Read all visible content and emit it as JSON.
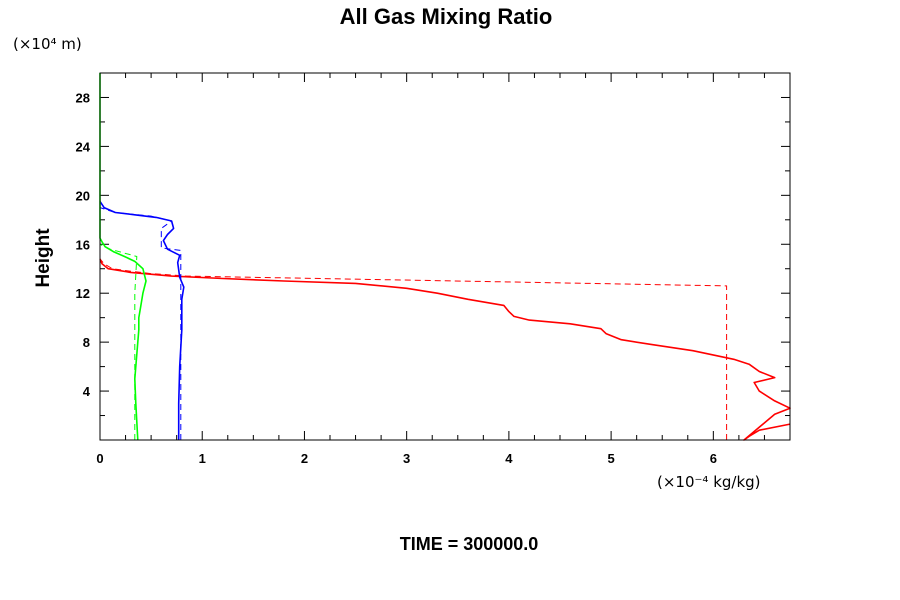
{
  "chart_data": {
    "type": "line",
    "title": "All Gas Mixing Ratio",
    "ylabel": "Height",
    "y_unit": "(×10⁴ m)",
    "x_unit": "(×10⁻⁴ kg/kg)",
    "footer": "TIME = 300000.0",
    "xlim": [
      0,
      6.75
    ],
    "ylim": [
      0,
      30
    ],
    "x_ticks": [
      0,
      1,
      2,
      3,
      4,
      5,
      6
    ],
    "y_ticks": [
      4,
      8,
      12,
      16,
      20,
      24,
      28
    ],
    "grid": false,
    "legend": "none",
    "series": [
      {
        "color": "#ff0000",
        "style": "solid",
        "points": [
          [
            6.75,
            1.3
          ],
          [
            6.45,
            0.8
          ],
          [
            6.35,
            0.3
          ],
          [
            6.3,
            0
          ],
          [
            6.6,
            2.1
          ],
          [
            6.75,
            2.6
          ],
          [
            6.6,
            3.2
          ],
          [
            6.45,
            4.0
          ],
          [
            6.4,
            4.7
          ],
          [
            6.6,
            5.1
          ],
          [
            6.45,
            5.6
          ],
          [
            6.35,
            6.2
          ],
          [
            6.2,
            6.6
          ],
          [
            5.8,
            7.3
          ],
          [
            5.4,
            7.8
          ],
          [
            5.1,
            8.2
          ],
          [
            4.95,
            8.7
          ],
          [
            4.9,
            9.1
          ],
          [
            4.6,
            9.5
          ],
          [
            4.2,
            9.8
          ],
          [
            4.05,
            10.1
          ],
          [
            4.0,
            10.5
          ],
          [
            3.95,
            11.0
          ],
          [
            3.6,
            11.5
          ],
          [
            3.3,
            12.0
          ],
          [
            3.0,
            12.4
          ],
          [
            2.5,
            12.8
          ],
          [
            1.8,
            13.0
          ],
          [
            1.2,
            13.2
          ],
          [
            0.7,
            13.4
          ],
          [
            0.3,
            13.7
          ],
          [
            0.08,
            14.0
          ],
          [
            0.02,
            14.4
          ],
          [
            0,
            14.8
          ]
        ]
      },
      {
        "color": "#ff0000",
        "style": "dashed",
        "points": [
          [
            6.13,
            0
          ],
          [
            6.13,
            12.6
          ],
          [
            0.85,
            13.4
          ],
          [
            0.5,
            13.6
          ],
          [
            0.3,
            13.8
          ],
          [
            0.12,
            14.0
          ],
          [
            0.04,
            14.4
          ],
          [
            0,
            14.8
          ]
        ]
      },
      {
        "color": "#0000ff",
        "style": "solid",
        "points": [
          [
            0.77,
            0
          ],
          [
            0.77,
            3.0
          ],
          [
            0.78,
            6.0
          ],
          [
            0.8,
            9.0
          ],
          [
            0.8,
            11.5
          ],
          [
            0.82,
            12.5
          ],
          [
            0.78,
            13.3
          ],
          [
            0.76,
            14.5
          ],
          [
            0.78,
            15.1
          ],
          [
            0.66,
            15.6
          ],
          [
            0.62,
            16.3
          ],
          [
            0.66,
            16.8
          ],
          [
            0.72,
            17.3
          ],
          [
            0.7,
            17.9
          ],
          [
            0.55,
            18.2
          ],
          [
            0.35,
            18.4
          ],
          [
            0.15,
            18.6
          ],
          [
            0.04,
            19.0
          ],
          [
            0,
            19.5
          ]
        ]
      },
      {
        "color": "#0000ff",
        "style": "dashed",
        "points": [
          [
            0.79,
            0
          ],
          [
            0.79,
            15.5
          ],
          [
            0.6,
            15.7
          ],
          [
            0.6,
            17.3
          ],
          [
            0.7,
            17.9
          ],
          [
            0.5,
            18.3
          ],
          [
            0.15,
            18.6
          ],
          [
            0,
            19.0
          ]
        ]
      },
      {
        "color": "#00ff00",
        "style": "solid",
        "points": [
          [
            0.37,
            0
          ],
          [
            0.35,
            3.0
          ],
          [
            0.34,
            5.0
          ],
          [
            0.36,
            7.0
          ],
          [
            0.38,
            9.0
          ],
          [
            0.38,
            10.0
          ],
          [
            0.4,
            11.0
          ],
          [
            0.42,
            12.0
          ],
          [
            0.45,
            13.0
          ],
          [
            0.42,
            14.0
          ],
          [
            0.34,
            14.6
          ],
          [
            0.24,
            15.0
          ],
          [
            0.13,
            15.4
          ],
          [
            0.05,
            15.8
          ],
          [
            0.02,
            16.2
          ],
          [
            0,
            16.5
          ],
          [
            0,
            30
          ]
        ]
      },
      {
        "color": "#00ff00",
        "style": "dashed",
        "points": [
          [
            0.34,
            0
          ],
          [
            0.34,
            12.0
          ],
          [
            0.36,
            15.0
          ],
          [
            0.1,
            15.6
          ],
          [
            0,
            16.0
          ]
        ]
      }
    ]
  }
}
